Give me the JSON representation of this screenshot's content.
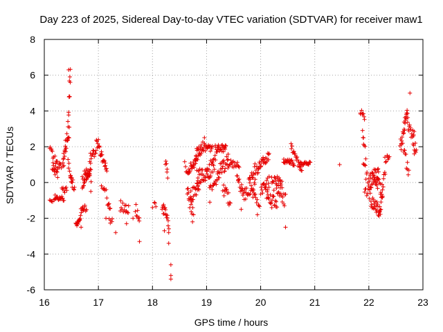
{
  "chart_data": {
    "type": "scatter",
    "title": "Day 223 of 2025, Sidereal Day-to-day VTEC variation (SDTVAR) for receiver maw1",
    "xlabel": "GPS time / hours",
    "ylabel": "SDTVAR / TECUs",
    "xlim": [
      16,
      23
    ],
    "ylim": [
      -6,
      8
    ],
    "xticks": [
      16,
      17,
      18,
      19,
      20,
      21,
      22,
      23
    ],
    "yticks": [
      -6,
      -4,
      -2,
      0,
      2,
      4,
      6,
      8
    ],
    "grid": true,
    "marker": "+",
    "color": "#e60000",
    "series": [
      {
        "name": "SDTVAR",
        "segments": [
          {
            "x0": 16.1,
            "x1": 16.15,
            "y0": -0.9,
            "y1": -1.0,
            "n": 4,
            "noise": 0.1
          },
          {
            "x0": 16.1,
            "x1": 16.18,
            "y0": 2.1,
            "y1": 1.0,
            "n": 8,
            "noise": 0.3
          },
          {
            "x0": 16.15,
            "x1": 16.25,
            "y0": 1.0,
            "y1": 0.5,
            "n": 14,
            "noise": 0.3
          },
          {
            "x0": 16.18,
            "x1": 16.36,
            "y0": -0.9,
            "y1": -0.9,
            "n": 18,
            "noise": 0.12
          },
          {
            "x0": 16.2,
            "x1": 16.32,
            "y0": 1.3,
            "y1": 0.8,
            "n": 12,
            "noise": 0.35
          },
          {
            "x0": 16.32,
            "x1": 16.42,
            "y0": -0.3,
            "y1": -0.5,
            "n": 8,
            "noise": 0.2
          },
          {
            "x0": 16.34,
            "x1": 16.46,
            "y0": 1.0,
            "y1": 3.0,
            "n": 24,
            "noise": 0.5
          },
          {
            "x0": 16.44,
            "x1": 16.48,
            "y0": 3.2,
            "y1": 6.3,
            "n": 8,
            "noise": 0.3
          },
          {
            "x0": 16.44,
            "x1": 16.52,
            "y0": 1.0,
            "y1": 0.0,
            "n": 10,
            "noise": 0.3
          },
          {
            "x0": 16.48,
            "x1": 16.56,
            "y0": 0.6,
            "y1": -0.5,
            "n": 8,
            "noise": 0.3
          },
          {
            "x0": 16.58,
            "x1": 16.66,
            "y0": -2.4,
            "y1": -2.0,
            "n": 12,
            "noise": 0.15
          },
          {
            "x0": 16.62,
            "x1": 16.78,
            "y0": -2.0,
            "y1": -1.2,
            "n": 20,
            "noise": 0.35
          },
          {
            "x0": 16.7,
            "x1": 16.86,
            "y0": 0.0,
            "y1": 0.8,
            "n": 30,
            "noise": 0.35
          },
          {
            "x0": 16.74,
            "x1": 16.86,
            "y0": 0.6,
            "y1": 0.3,
            "n": 8,
            "noise": 0.4
          },
          {
            "x0": 16.84,
            "x1": 16.96,
            "y0": 1.4,
            "y1": 1.7,
            "n": 12,
            "noise": 0.25
          },
          {
            "x0": 16.96,
            "x1": 17.16,
            "y0": 2.3,
            "y1": 0.7,
            "n": 26,
            "noise": 0.2
          },
          {
            "x0": 17.06,
            "x1": 17.14,
            "y0": -0.2,
            "y1": -0.5,
            "n": 6,
            "noise": 0.15
          },
          {
            "x0": 17.16,
            "x1": 17.22,
            "y0": -1.0,
            "y1": -1.6,
            "n": 8,
            "noise": 0.2
          },
          {
            "x0": 17.2,
            "x1": 17.26,
            "y0": -2.0,
            "y1": -2.2,
            "n": 5,
            "noise": 0.3
          },
          {
            "x0": 17.4,
            "x1": 17.56,
            "y0": -1.3,
            "y1": -1.6,
            "n": 14,
            "noise": 0.35
          },
          {
            "x0": 17.68,
            "x1": 17.76,
            "y0": -1.4,
            "y1": -2.2,
            "n": 8,
            "noise": 0.3
          },
          {
            "x0": 18.04,
            "x1": 18.06,
            "y0": -1.1,
            "y1": -1.3,
            "n": 3,
            "noise": 0.1
          },
          {
            "x0": 18.18,
            "x1": 18.3,
            "y0": -1.2,
            "y1": -2.4,
            "n": 18,
            "noise": 0.4
          },
          {
            "x0": 18.24,
            "x1": 18.28,
            "y0": 1.2,
            "y1": 0.4,
            "n": 6,
            "noise": 0.2
          },
          {
            "x0": 18.6,
            "x1": 18.66,
            "y0": 1.0,
            "y1": 0.6,
            "n": 6,
            "noise": 0.25
          },
          {
            "x0": 18.64,
            "x1": 18.74,
            "y0": -0.5,
            "y1": -1.6,
            "n": 14,
            "noise": 0.4
          },
          {
            "x0": 18.66,
            "x1": 18.82,
            "y0": 0.6,
            "y1": 1.2,
            "n": 22,
            "noise": 0.35
          },
          {
            "x0": 18.7,
            "x1": 18.86,
            "y0": -0.8,
            "y1": -0.2,
            "n": 20,
            "noise": 0.35
          },
          {
            "x0": 18.8,
            "x1": 18.96,
            "y0": 1.5,
            "y1": 2.2,
            "n": 24,
            "noise": 0.35
          },
          {
            "x0": 18.82,
            "x1": 19.0,
            "y0": 0.3,
            "y1": 0.5,
            "n": 26,
            "noise": 0.4
          },
          {
            "x0": 18.96,
            "x1": 19.1,
            "y0": 2.0,
            "y1": 1.8,
            "n": 16,
            "noise": 0.25
          },
          {
            "x0": 19.0,
            "x1": 19.16,
            "y0": 0.4,
            "y1": 1.2,
            "n": 24,
            "noise": 0.45
          },
          {
            "x0": 19.06,
            "x1": 19.2,
            "y0": -0.4,
            "y1": 0.2,
            "n": 12,
            "noise": 0.3
          },
          {
            "x0": 19.16,
            "x1": 19.36,
            "y0": 1.9,
            "y1": 1.9,
            "n": 24,
            "noise": 0.2
          },
          {
            "x0": 19.2,
            "x1": 19.4,
            "y0": 0.6,
            "y1": 1.2,
            "n": 26,
            "noise": 0.45
          },
          {
            "x0": 19.3,
            "x1": 19.44,
            "y0": -0.3,
            "y1": -1.1,
            "n": 14,
            "noise": 0.35
          },
          {
            "x0": 19.4,
            "x1": 19.6,
            "y0": 1.1,
            "y1": 0.9,
            "n": 18,
            "noise": 0.2
          },
          {
            "x0": 19.56,
            "x1": 19.7,
            "y0": 0.3,
            "y1": -0.9,
            "n": 16,
            "noise": 0.4
          },
          {
            "x0": 19.7,
            "x1": 19.9,
            "y0": -0.6,
            "y1": -0.2,
            "n": 20,
            "noise": 0.4
          },
          {
            "x0": 19.78,
            "x1": 19.96,
            "y0": 0.4,
            "y1": 0.9,
            "n": 18,
            "noise": 0.35
          },
          {
            "x0": 19.86,
            "x1": 19.98,
            "y0": -0.6,
            "y1": -1.2,
            "n": 10,
            "noise": 0.3
          },
          {
            "x0": 19.96,
            "x1": 20.16,
            "y0": 1.0,
            "y1": 1.5,
            "n": 22,
            "noise": 0.25
          },
          {
            "x0": 20.0,
            "x1": 20.16,
            "y0": -0.4,
            "y1": 0.0,
            "n": 18,
            "noise": 0.35
          },
          {
            "x0": 20.1,
            "x1": 20.3,
            "y0": -0.6,
            "y1": -1.4,
            "n": 22,
            "noise": 0.4
          },
          {
            "x0": 20.2,
            "x1": 20.4,
            "y0": -0.1,
            "y1": 0.1,
            "n": 22,
            "noise": 0.4
          },
          {
            "x0": 20.3,
            "x1": 20.46,
            "y0": -0.5,
            "y1": -1.0,
            "n": 16,
            "noise": 0.4
          },
          {
            "x0": 20.42,
            "x1": 20.62,
            "y0": 1.2,
            "y1": 1.1,
            "n": 24,
            "noise": 0.15
          },
          {
            "x0": 20.56,
            "x1": 20.76,
            "y0": 2.0,
            "y1": 0.8,
            "n": 22,
            "noise": 0.3
          },
          {
            "x0": 20.72,
            "x1": 20.92,
            "y0": 1.0,
            "y1": 1.1,
            "n": 20,
            "noise": 0.12
          },
          {
            "x0": 21.84,
            "x1": 21.92,
            "y0": 4.0,
            "y1": 3.6,
            "n": 8,
            "noise": 0.15
          },
          {
            "x0": 21.88,
            "x1": 21.94,
            "y0": 3.0,
            "y1": 1.4,
            "n": 6,
            "noise": 0.3
          },
          {
            "x0": 21.9,
            "x1": 21.98,
            "y0": 1.2,
            "y1": 0.0,
            "n": 8,
            "noise": 0.4
          },
          {
            "x0": 21.92,
            "x1": 22.04,
            "y0": -0.4,
            "y1": -0.6,
            "n": 10,
            "noise": 0.35
          },
          {
            "x0": 22.0,
            "x1": 22.18,
            "y0": 0.0,
            "y1": 0.4,
            "n": 30,
            "noise": 0.45
          },
          {
            "x0": 22.04,
            "x1": 22.22,
            "y0": -1.0,
            "y1": -1.7,
            "n": 26,
            "noise": 0.35
          },
          {
            "x0": 22.1,
            "x1": 22.26,
            "y0": 0.6,
            "y1": -0.8,
            "n": 16,
            "noise": 0.4
          },
          {
            "x0": 22.2,
            "x1": 22.3,
            "y0": -1.4,
            "y1": 0.8,
            "n": 12,
            "noise": 0.35
          },
          {
            "x0": 22.3,
            "x1": 22.38,
            "y0": 1.2,
            "y1": 1.6,
            "n": 8,
            "noise": 0.25
          },
          {
            "x0": 22.58,
            "x1": 22.72,
            "y0": 2.0,
            "y1": 4.0,
            "n": 24,
            "noise": 0.45
          },
          {
            "x0": 22.64,
            "x1": 22.74,
            "y0": 1.8,
            "y1": 0.6,
            "n": 10,
            "noise": 0.35
          },
          {
            "x0": 22.72,
            "x1": 22.84,
            "y0": 3.2,
            "y1": 2.6,
            "n": 14,
            "noise": 0.35
          },
          {
            "x0": 22.82,
            "x1": 22.88,
            "y0": 2.0,
            "y1": 1.8,
            "n": 6,
            "noise": 0.2
          }
        ],
        "points": [
          [
            16.2,
            -0.7
          ],
          [
            16.45,
            6.3
          ],
          [
            16.48,
            5.6
          ],
          [
            16.47,
            4.8
          ],
          [
            16.68,
            -2.5
          ],
          [
            16.86,
            -0.5
          ],
          [
            17.0,
            2.4
          ],
          [
            17.14,
            -2.0
          ],
          [
            17.32,
            -2.8
          ],
          [
            17.52,
            -2.3
          ],
          [
            17.64,
            -2.0
          ],
          [
            17.76,
            -3.3
          ],
          [
            18.0,
            -1.4
          ],
          [
            18.22,
            -2.7
          ],
          [
            18.3,
            -2.8
          ],
          [
            18.3,
            -3.4
          ],
          [
            18.34,
            -4.6
          ],
          [
            18.34,
            -5.2
          ],
          [
            18.34,
            -5.4
          ],
          [
            18.74,
            -2.2
          ],
          [
            18.76,
            -1.8
          ],
          [
            19.06,
            -1.1
          ],
          [
            19.64,
            -1.5
          ],
          [
            19.94,
            -1.8
          ],
          [
            20.46,
            -2.5
          ],
          [
            21.46,
            1.0
          ],
          [
            21.9,
            2.5
          ],
          [
            22.76,
            5.0
          ],
          [
            22.84,
            1.6
          ],
          [
            22.86,
            2.2
          ]
        ]
      }
    ]
  }
}
